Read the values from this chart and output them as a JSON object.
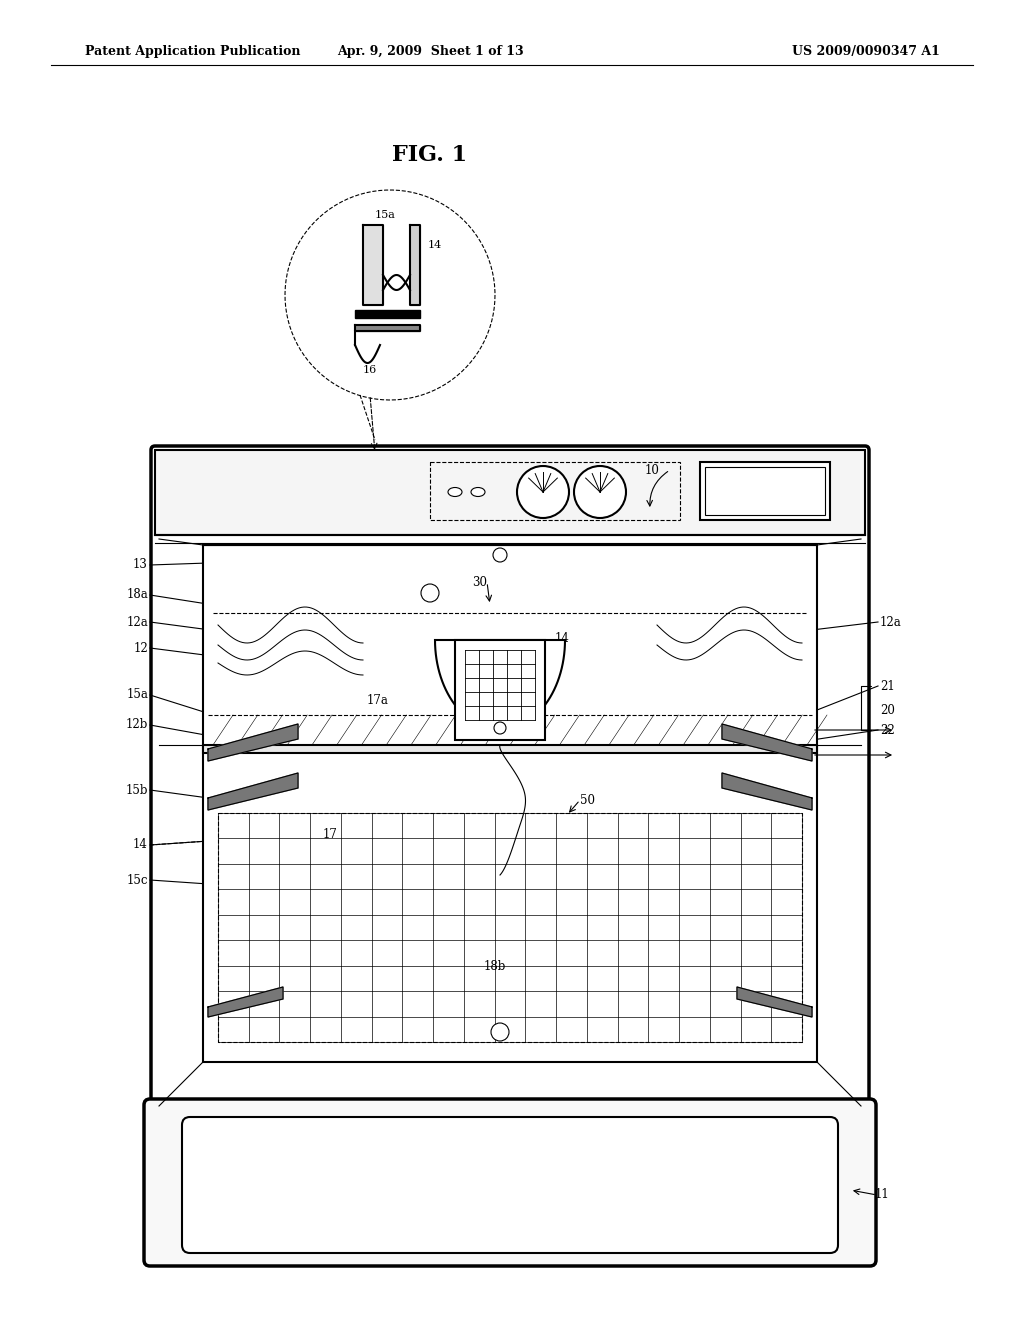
{
  "bg_color": "#ffffff",
  "header_left": "Patent Application Publication",
  "header_center": "Apr. 9, 2009  Sheet 1 of 13",
  "header_right": "US 2009/0090347 A1",
  "fig_label": "FIG. 1"
}
